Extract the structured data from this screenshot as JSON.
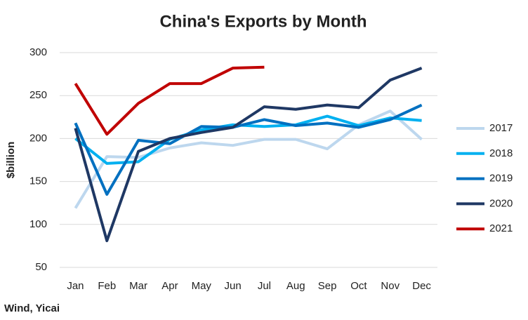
{
  "chart_data": {
    "type": "line",
    "title": "China's Exports by Month",
    "y_label": "$billion",
    "source": "Wind, Yicai",
    "categories": [
      "Jan",
      "Feb",
      "Mar",
      "Apr",
      "May",
      "Jun",
      "Jul",
      "Aug",
      "Sep",
      "Oct",
      "Nov",
      "Dec"
    ],
    "ylim": [
      50,
      300
    ],
    "yticks": [
      50,
      100,
      150,
      200,
      250,
      300
    ],
    "grid": true,
    "legend": "right",
    "series": [
      {
        "name": "2017",
        "color": "#bdd7ee",
        "values": [
          119,
          179,
          178,
          189,
          195,
          192,
          199,
          199,
          188,
          216,
          232,
          199
        ]
      },
      {
        "name": "2018",
        "color": "#00b0f0",
        "values": [
          200,
          171,
          173,
          199,
          210,
          216,
          214,
          216,
          226,
          215,
          224,
          221
        ]
      },
      {
        "name": "2019",
        "color": "#0070c0",
        "values": [
          218,
          135,
          198,
          194,
          214,
          213,
          222,
          215,
          218,
          213,
          222,
          239
        ]
      },
      {
        "name": "2020",
        "color": "#1f3864",
        "values": [
          212,
          81,
          185,
          200,
          207,
          213,
          237,
          234,
          239,
          236,
          268,
          282
        ]
      },
      {
        "name": "2021",
        "color": "#c00000",
        "values": [
          264,
          205,
          241,
          264,
          264,
          282,
          283,
          null,
          null,
          null,
          null,
          null
        ]
      }
    ]
  }
}
